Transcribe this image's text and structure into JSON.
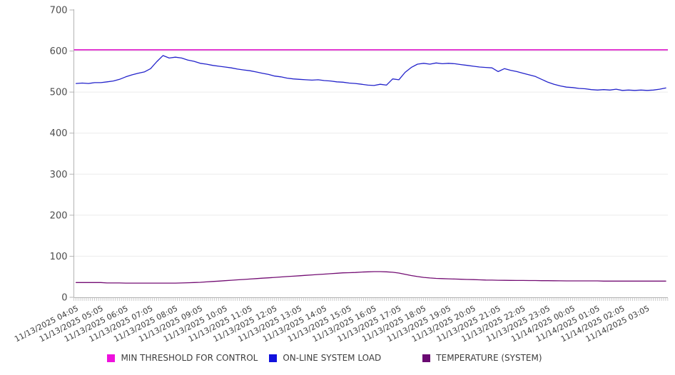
{
  "chart_data": {
    "type": "line",
    "title": "",
    "xlabel": "",
    "ylabel": "",
    "grid": true,
    "legend_position": "bottom",
    "y_axis": {
      "min": 0,
      "max": 700,
      "tick_step": 100,
      "tick_labels": [
        "0",
        "100",
        "200",
        "300",
        "400",
        "500",
        "600",
        "700"
      ]
    },
    "x_axis": {
      "tick_labels": [
        "11/13/2025 04:05",
        "11/13/2025 05:05",
        "11/13/2025 06:05",
        "11/13/2025 07:05",
        "11/13/2025 08:05",
        "11/13/2025 09:05",
        "11/13/2025 10:05",
        "11/13/2025 11:05",
        "11/13/2025 12:05",
        "11/13/2025 13:05",
        "11/13/2025 14:05",
        "11/13/2025 15:05",
        "11/13/2025 16:05",
        "11/13/2025 17:05",
        "11/13/2025 18:05",
        "11/13/2025 19:05",
        "11/13/2025 20:05",
        "11/13/2025 21:05",
        "11/13/2025 22:05",
        "11/13/2025 23:05",
        "11/14/2025 00:05",
        "11/14/2025 01:05",
        "11/14/2025 02:05",
        "11/14/2025 03:05"
      ],
      "label_interval_minutes": 60,
      "minor_tick_interval_minutes": 5
    },
    "series": [
      {
        "name": "MIN THRESHOLD FOR CONTROL",
        "color": "#dd22cc",
        "kind": "constant",
        "value": 603
      },
      {
        "name": "ON-LINE SYSTEM LOAD",
        "color": "#2323cb",
        "kind": "line",
        "step_minutes": 15,
        "start_label": "11/13/2025 04:05",
        "values": [
          521,
          522,
          521,
          523,
          523,
          525,
          527,
          531,
          537,
          542,
          546,
          549,
          557,
          574,
          589,
          583,
          585,
          583,
          578,
          575,
          570,
          568,
          565,
          563,
          561,
          559,
          556,
          554,
          552,
          549,
          546,
          543,
          539,
          537,
          534,
          532,
          531,
          530,
          529,
          530,
          528,
          527,
          525,
          524,
          522,
          521,
          519,
          517,
          516,
          519,
          517,
          532,
          530,
          548,
          560,
          568,
          570,
          568,
          571,
          569,
          570,
          569,
          567,
          565,
          563,
          561,
          560,
          559,
          550,
          557,
          553,
          550,
          546,
          542,
          538,
          531,
          524,
          519,
          515,
          512,
          511,
          509,
          508,
          506,
          505,
          506,
          505,
          507,
          504,
          505,
          504,
          505,
          504,
          505,
          507,
          510
        ]
      },
      {
        "name": "TEMPERATURE (SYSTEM)",
        "color": "#730d73",
        "kind": "line",
        "step_minutes": 15,
        "start_label": "11/13/2025 04:05",
        "values": [
          36,
          36,
          36,
          36,
          36,
          35,
          35,
          35,
          34.5,
          34.5,
          34.5,
          34.5,
          34.5,
          34.5,
          34.5,
          34.5,
          34.5,
          35,
          35.5,
          36,
          36.5,
          37.5,
          38.5,
          39.5,
          40.5,
          41.5,
          42.5,
          43.5,
          44.5,
          45.5,
          46.5,
          47.5,
          48.5,
          49.5,
          50.5,
          51.5,
          52.5,
          53.5,
          54.5,
          55.5,
          56.5,
          57.5,
          58.5,
          59.5,
          60,
          60.5,
          61.5,
          62,
          62.5,
          62.5,
          62,
          61,
          59,
          56,
          53,
          50.5,
          48.5,
          47,
          46,
          45.5,
          45,
          44.5,
          44,
          43.5,
          43,
          42.5,
          42,
          41.8,
          41.5,
          41.3,
          41.2,
          41,
          41,
          40.8,
          40.8,
          40.5,
          40.5,
          40.3,
          40.2,
          40,
          40,
          40,
          40,
          40,
          40,
          39.5,
          39.5,
          39.5,
          39.5,
          39.5,
          39.5,
          39.5,
          39.5,
          39.5,
          39.5,
          39.5
        ]
      }
    ],
    "legend": {
      "items": [
        {
          "label": "MIN THRESHOLD FOR CONTROL",
          "color": "#ee11dd",
          "icon": "square-swatch-icon"
        },
        {
          "label": "ON-LINE SYSTEM LOAD",
          "color": "#1111dd",
          "icon": "square-swatch-icon"
        },
        {
          "label": "TEMPERATURE (SYSTEM)",
          "color": "#6a0a72",
          "icon": "square-swatch-icon"
        }
      ]
    },
    "colors": {
      "axis": "#b3b3b3",
      "gridline": "#ebebeb",
      "minor_tick": "#cccccc",
      "y_tick_label": "#4d4d4d",
      "x_tick_label": "#3a3a3a",
      "background": "#ffffff"
    }
  }
}
